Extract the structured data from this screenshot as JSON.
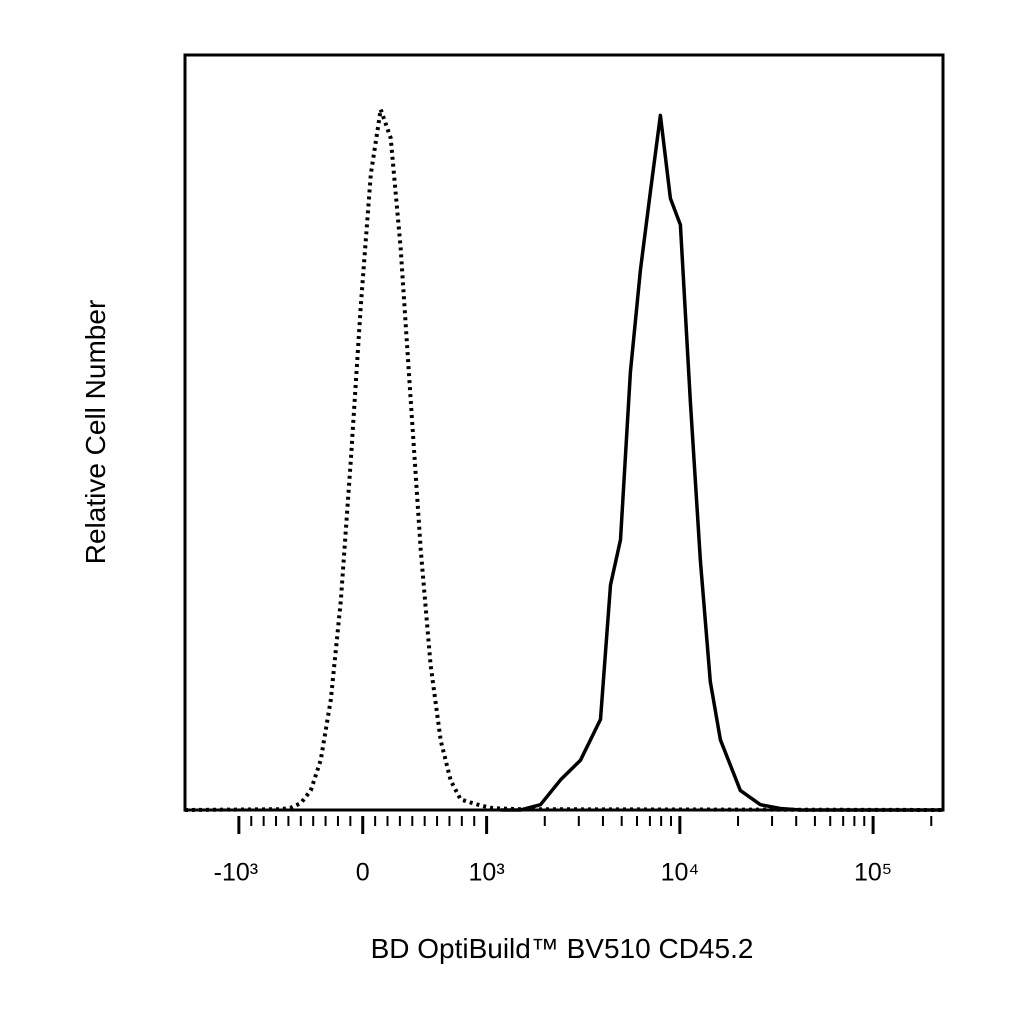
{
  "chart_data": {
    "type": "histogram-overlay",
    "xlabel": "BD OptiBuild™ BV510 CD45.2",
    "ylabel": "Relative Cell Number",
    "xscale": "biexponential",
    "xlim": [
      -1900,
      230000
    ],
    "ylim": [
      0,
      100
    ],
    "xticks": [
      {
        "value": -1000,
        "label": "-10³"
      },
      0,
      {
        "value": 1000,
        "label": "10³"
      },
      {
        "value": 10000,
        "label": "10⁴"
      },
      {
        "value": 100000,
        "label": "10⁵"
      }
    ],
    "xminorticks": [
      -900,
      -800,
      -700,
      -600,
      -500,
      -400,
      -300,
      -200,
      -100,
      100,
      200,
      300,
      400,
      500,
      600,
      700,
      800,
      900,
      2000,
      3000,
      4000,
      5000,
      6000,
      7000,
      8000,
      9000,
      20000,
      30000,
      40000,
      50000,
      60000,
      70000,
      80000,
      90000,
      200000
    ],
    "series": [
      {
        "style": "dotted",
        "color": "#000000",
        "x": [
          -1900,
          -661,
          -581,
          -500,
          -419,
          -339,
          -258,
          -177,
          -97,
          -16,
          65,
          145,
          226,
          306,
          387,
          468,
          548,
          629,
          710,
          790,
          871,
          952,
          1048,
          1181,
          1500,
          230000
        ],
        "values": [
          0,
          0.1,
          0.3,
          0.9,
          2.6,
          6.6,
          14.6,
          27.7,
          46.1,
          66.8,
          84.2,
          92.8,
          89,
          74.5,
          54.3,
          34.5,
          19.2,
          9.2,
          3.9,
          1.4,
          1.0,
          0.6,
          0.3,
          0.2,
          0.1,
          0
        ]
      },
      {
        "style": "solid",
        "color": "#000000",
        "x": [
          1181,
          1499,
          1901,
          2414,
          3062,
          3884,
          4377,
          4931,
          5549,
          6252,
          7046,
          7930,
          8933,
          10070,
          11340,
          12770,
          14380,
          16220,
          20560,
          26100,
          33110,
          41980,
          230000
        ],
        "values": [
          0,
          0,
          0.7,
          4,
          6.6,
          12,
          29.8,
          35.8,
          58,
          71.5,
          82,
          92,
          81,
          77.5,
          54,
          33,
          17,
          9.3,
          2.6,
          0.7,
          0.2,
          0,
          0
        ]
      }
    ]
  }
}
